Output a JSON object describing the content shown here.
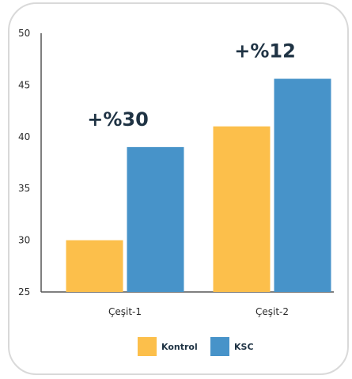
{
  "chart_data": {
    "type": "bar",
    "title": "",
    "xlabel": "",
    "ylabel": "",
    "categories": [
      "Çeşit-1",
      "Çeşit-2"
    ],
    "series": [
      {
        "name": "Kontrol",
        "values": [
          30,
          41
        ],
        "color": "#fcbf4b"
      },
      {
        "name": "KSC",
        "values": [
          39,
          45.6
        ],
        "color": "#4793c9"
      }
    ],
    "ylim": [
      25,
      50
    ],
    "yticks": [
      25,
      30,
      35,
      40,
      45,
      50
    ],
    "annotations": [
      {
        "category": "Çeşit-1",
        "text": "+%30"
      },
      {
        "category": "Çeşit-2",
        "text": "+%12"
      }
    ],
    "grid": false,
    "legend_position": "bottom-center"
  }
}
